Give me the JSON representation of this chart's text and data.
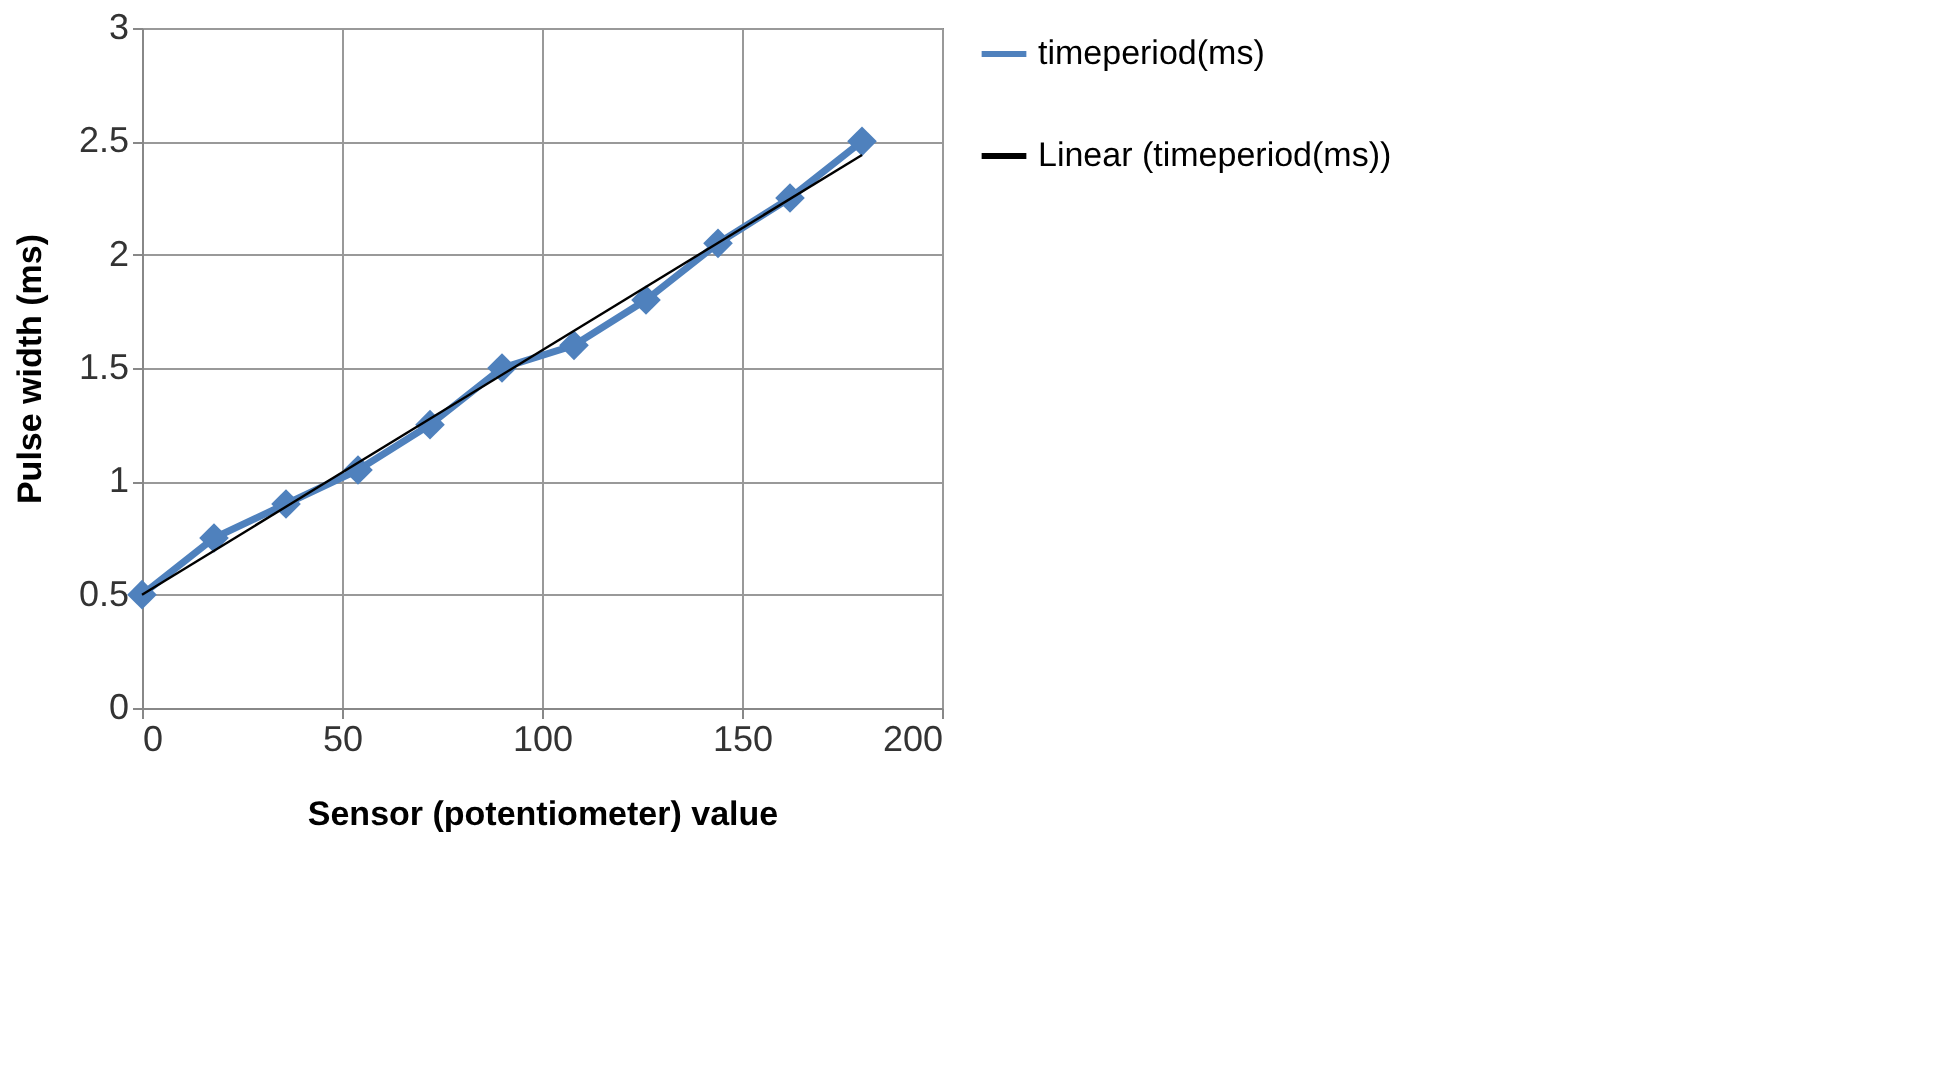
{
  "chart_data": {
    "type": "line",
    "xlabel": "Sensor (potentiometer) value",
    "ylabel": "Pulse width (ms)",
    "x": [
      0,
      18,
      36,
      54,
      72,
      90,
      108,
      126,
      144,
      162,
      180
    ],
    "series": [
      {
        "name": "timeperiod(ms)",
        "color": "#4f81bd",
        "values": [
          0.5,
          0.75,
          0.9,
          1.05,
          1.25,
          1.5,
          1.6,
          1.8,
          2.05,
          2.25,
          2.5
        ],
        "marker": "diamond"
      },
      {
        "name": "Linear (timeperiod(ms))",
        "color": "#000000",
        "type": "line",
        "x": [
          0,
          180
        ],
        "values": [
          0.5,
          2.44
        ],
        "marker": "none"
      }
    ],
    "xlim": [
      0,
      200
    ],
    "xticks": [
      0,
      50,
      100,
      150,
      200
    ],
    "ylim": [
      0,
      3
    ],
    "yticks": [
      0,
      0.5,
      1,
      1.5,
      2,
      2.5,
      3
    ],
    "grid": true,
    "legend": "right"
  }
}
